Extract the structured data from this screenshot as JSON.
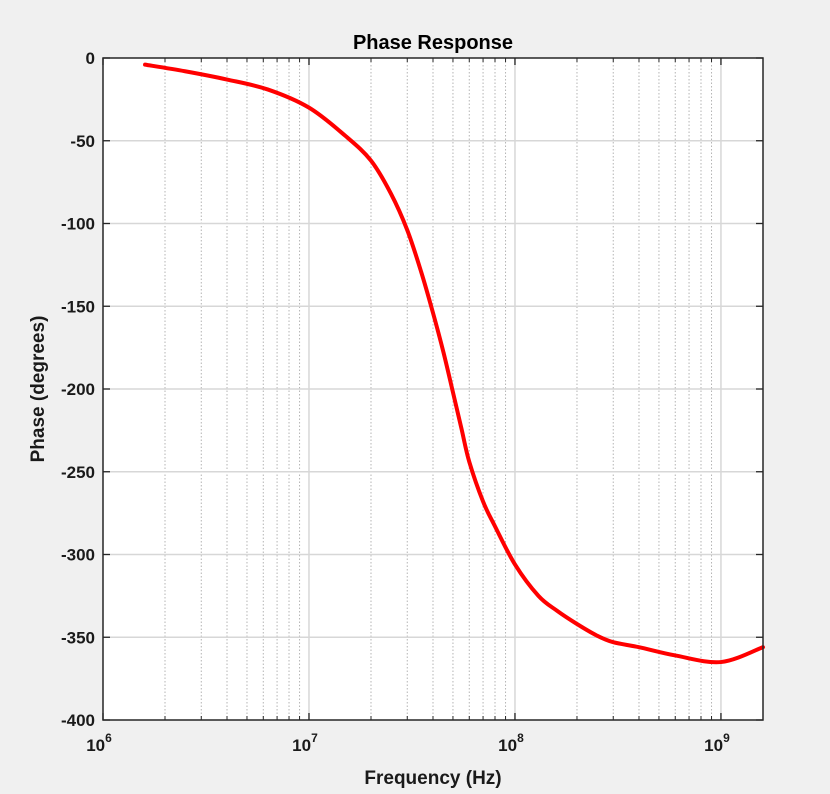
{
  "chart_data": {
    "type": "line",
    "title": "Phase Response",
    "xlabel": "Frequency (Hz)",
    "ylabel": "Phase (degrees)",
    "x_scale": "log",
    "xlim": [
      1000000,
      1600000000
    ],
    "ylim": [
      -400,
      0
    ],
    "x_ticks": [
      {
        "value": 1000000,
        "base": "10",
        "exp": "6"
      },
      {
        "value": 10000000,
        "base": "10",
        "exp": "7"
      },
      {
        "value": 100000000,
        "base": "10",
        "exp": "8"
      },
      {
        "value": 1000000000,
        "base": "10",
        "exp": "9"
      }
    ],
    "y_ticks": [
      0,
      -50,
      -100,
      -150,
      -200,
      -250,
      -300,
      -350,
      -400
    ],
    "y_tick_labels": [
      "0",
      "-50",
      "-100",
      "-150",
      "-200",
      "-250",
      "-300",
      "-350",
      "-400"
    ],
    "grid": true,
    "minor_grid_x": true,
    "series": [
      {
        "color": "#ff0000",
        "x": [
          1600000,
          2500000,
          4000000,
          6300000,
          10000000,
          15000000,
          20000000,
          25000000,
          30000000,
          35000000,
          40000000,
          45000000,
          50000000,
          55000000,
          60000000,
          70000000,
          80000000,
          100000000,
          130000000,
          160000000,
          200000000,
          250000000,
          300000000,
          400000000,
          600000000,
          1000000000,
          1600000000
        ],
        "values": [
          -4,
          -8,
          -13,
          -19,
          -30,
          -47,
          -62,
          -82,
          -104,
          -129,
          -154,
          -178,
          -202,
          -224,
          -244,
          -268,
          -283,
          -306,
          -325,
          -334,
          -342,
          -349,
          -353,
          -356,
          -361,
          -365,
          -356
        ]
      }
    ]
  }
}
